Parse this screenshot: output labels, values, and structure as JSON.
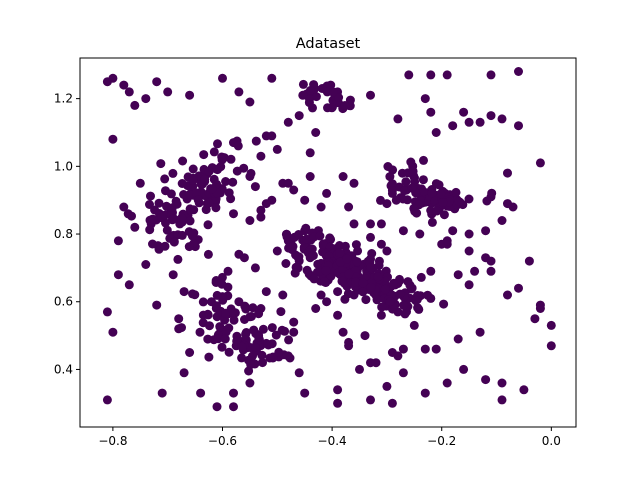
{
  "chart_data": {
    "type": "scatter",
    "title": "Adataset",
    "xlabel": "",
    "ylabel": "",
    "xlim": [
      -0.86,
      0.045
    ],
    "ylim": [
      0.23,
      1.32
    ],
    "x_ticks": [
      -0.8,
      -0.6,
      -0.4,
      -0.2,
      0.0
    ],
    "x_tick_labels": [
      "−0.8",
      "−0.6",
      "−0.4",
      "−0.2",
      "0.0"
    ],
    "y_ticks": [
      0.4,
      0.6,
      0.8,
      1.0,
      1.2
    ],
    "y_tick_labels": [
      "0.4",
      "0.6",
      "0.8",
      "1.0",
      "1.2"
    ],
    "grid": false,
    "marker_color": "#440154",
    "series": [
      {
        "points": [
          [
            -0.81,
            1.25
          ],
          [
            -0.8,
            1.26
          ],
          [
            -0.78,
            1.24
          ],
          [
            -0.77,
            1.22
          ],
          [
            -0.72,
            1.25
          ],
          [
            -0.74,
            1.2
          ],
          [
            -0.7,
            1.22
          ],
          [
            -0.66,
            1.21
          ],
          [
            -0.6,
            1.26
          ],
          [
            -0.57,
            1.22
          ],
          [
            -0.51,
            1.26
          ],
          [
            -0.76,
            1.18
          ],
          [
            -0.8,
            1.08
          ],
          [
            -0.75,
            0.95
          ],
          [
            -0.78,
            0.88
          ],
          [
            -0.79,
            0.78
          ],
          [
            -0.81,
            0.57
          ],
          [
            -0.8,
            0.51
          ],
          [
            -0.81,
            0.31
          ],
          [
            -0.79,
            0.68
          ],
          [
            -0.77,
            0.65
          ],
          [
            -0.74,
            0.71
          ],
          [
            -0.73,
            0.83
          ],
          [
            -0.76,
            0.82
          ],
          [
            -0.72,
            0.59
          ],
          [
            -0.71,
            0.33
          ],
          [
            -0.67,
            0.39
          ],
          [
            -0.64,
            0.33
          ],
          [
            -0.61,
            0.29
          ],
          [
            -0.58,
            0.29
          ],
          [
            -0.55,
            0.36
          ],
          [
            -0.46,
            0.39
          ],
          [
            -0.45,
            0.33
          ],
          [
            -0.39,
            0.3
          ],
          [
            -0.39,
            0.34
          ],
          [
            -0.35,
            0.4
          ],
          [
            -0.33,
            0.31
          ],
          [
            -0.3,
            0.35
          ],
          [
            -0.29,
            0.3
          ],
          [
            -0.27,
            0.39
          ],
          [
            -0.23,
            0.33
          ],
          [
            -0.19,
            0.36
          ],
          [
            -0.16,
            0.4
          ],
          [
            -0.12,
            0.37
          ],
          [
            -0.09,
            0.36
          ],
          [
            -0.05,
            0.34
          ],
          [
            -0.09,
            0.31
          ],
          [
            -0.02,
            0.58
          ],
          [
            -0.03,
            0.55
          ],
          [
            0.0,
            0.53
          ],
          [
            0.0,
            0.47
          ],
          [
            -0.02,
            0.59
          ],
          [
            -0.04,
            0.72
          ],
          [
            -0.06,
            0.64
          ],
          [
            -0.08,
            0.62
          ],
          [
            -0.11,
            0.69
          ],
          [
            -0.14,
            0.69
          ],
          [
            -0.15,
            0.65
          ],
          [
            -0.15,
            0.75
          ],
          [
            -0.12,
            0.81
          ],
          [
            -0.12,
            0.73
          ],
          [
            -0.07,
            0.88
          ],
          [
            -0.08,
            0.89
          ],
          [
            -0.08,
            0.98
          ],
          [
            -0.06,
            1.12
          ],
          [
            -0.09,
            1.14
          ],
          [
            -0.11,
            1.15
          ],
          [
            -0.13,
            1.13
          ],
          [
            -0.15,
            1.13
          ],
          [
            -0.16,
            1.16
          ],
          [
            -0.18,
            1.12
          ],
          [
            -0.21,
            1.1
          ],
          [
            -0.22,
            1.16
          ],
          [
            -0.23,
            1.2
          ],
          [
            -0.28,
            1.14
          ],
          [
            -0.26,
            1.27
          ],
          [
            -0.22,
            1.27
          ],
          [
            -0.19,
            1.27
          ],
          [
            -0.11,
            1.27
          ],
          [
            -0.06,
            1.28
          ],
          [
            -0.02,
            1.01
          ],
          [
            -0.33,
            1.21
          ],
          [
            -0.37,
            1.18
          ],
          [
            -0.39,
            1.22
          ],
          [
            -0.43,
            1.1
          ],
          [
            -0.53,
            1.03
          ],
          [
            -0.55,
            0.97
          ],
          [
            -0.58,
            1.07
          ],
          [
            -0.55,
            1.19
          ],
          [
            -0.52,
            1.09
          ],
          [
            -0.51,
            1.09
          ],
          [
            -0.46,
            1.15
          ],
          [
            -0.48,
            1.13
          ],
          [
            -0.5,
            1.05
          ],
          [
            -0.49,
            0.95
          ],
          [
            -0.51,
            0.9
          ],
          [
            -0.52,
            0.89
          ],
          [
            -0.54,
            0.94
          ],
          [
            -0.53,
            0.87
          ],
          [
            -0.55,
            0.84
          ],
          [
            -0.58,
            0.86
          ],
          [
            -0.62,
            0.6
          ],
          [
            -0.57,
            0.6
          ],
          [
            -0.53,
            0.58
          ],
          [
            -0.54,
            0.7
          ],
          [
            -0.52,
            0.63
          ],
          [
            -0.49,
            0.62
          ],
          [
            -0.47,
            0.54
          ],
          [
            -0.47,
            0.51
          ],
          [
            -0.48,
            0.44
          ],
          [
            -0.43,
            0.58
          ],
          [
            -0.42,
            0.62
          ],
          [
            -0.41,
            0.6
          ],
          [
            -0.39,
            0.56
          ],
          [
            -0.38,
            0.51
          ],
          [
            -0.37,
            0.48
          ],
          [
            -0.37,
            0.47
          ],
          [
            -0.34,
            0.5
          ],
          [
            -0.31,
            0.56
          ],
          [
            -0.28,
            0.57
          ],
          [
            -0.29,
            0.45
          ],
          [
            -0.27,
            0.46
          ],
          [
            -0.25,
            0.53
          ],
          [
            -0.23,
            0.46
          ],
          [
            -0.3,
            0.75
          ],
          [
            -0.31,
            0.77
          ],
          [
            -0.33,
            0.83
          ],
          [
            -0.36,
            0.95
          ],
          [
            -0.36,
            0.83
          ],
          [
            -0.37,
            0.88
          ],
          [
            -0.38,
            0.97
          ],
          [
            -0.41,
            0.92
          ],
          [
            -0.42,
            0.88
          ],
          [
            -0.44,
            0.97
          ],
          [
            -0.45,
            0.9
          ],
          [
            -0.47,
            0.93
          ],
          [
            -0.48,
            0.95
          ],
          [
            -0.44,
            1.04
          ],
          [
            -0.38,
            0.68
          ],
          [
            -0.39,
            0.63
          ],
          [
            -0.36,
            0.62
          ],
          [
            -0.44,
            0.73
          ],
          [
            -0.5,
            0.75
          ],
          [
            -0.48,
            0.78
          ],
          [
            -0.45,
            0.81
          ],
          [
            -0.53,
            0.85
          ],
          [
            -0.59,
            0.69
          ],
          [
            -0.57,
            0.74
          ],
          [
            -0.56,
            0.73
          ],
          [
            -0.67,
            0.63
          ],
          [
            -0.69,
            0.68
          ],
          [
            -0.68,
            0.55
          ],
          [
            -0.68,
            0.52
          ],
          [
            -0.66,
            0.45
          ],
          [
            -0.58,
            0.33
          ],
          [
            -0.33,
            0.42
          ],
          [
            -0.32,
            0.42
          ],
          [
            -0.28,
            0.44
          ],
          [
            -0.21,
            0.46
          ],
          [
            -0.17,
            0.49
          ],
          [
            -0.13,
            0.51
          ],
          [
            -0.22,
            0.61
          ],
          [
            -0.17,
            0.68
          ],
          [
            -0.22,
            0.69
          ],
          [
            -0.19,
            0.77
          ],
          [
            -0.2,
            0.77
          ],
          [
            -0.24,
            0.8
          ],
          [
            -0.19,
            0.78
          ],
          [
            -0.11,
            0.72
          ],
          [
            -0.18,
            0.81
          ],
          [
            -0.15,
            0.8
          ],
          [
            -0.09,
            0.84
          ],
          [
            -0.11,
            0.91
          ],
          [
            -0.3,
            0.89
          ],
          [
            -0.29,
            0.92
          ],
          [
            -0.31,
            0.83
          ],
          [
            -0.33,
            0.79
          ],
          [
            -0.27,
            0.81
          ]
        ],
        "clusters": [
          {
            "cx": -0.64,
            "cy": 0.94,
            "sx": 0.03,
            "sy": 0.035,
            "n": 55
          },
          {
            "cx": -0.69,
            "cy": 0.84,
            "sx": 0.035,
            "sy": 0.055,
            "n": 60
          },
          {
            "cx": -0.6,
            "cy": 1.02,
            "sx": 0.03,
            "sy": 0.035,
            "n": 18
          },
          {
            "cx": -0.59,
            "cy": 0.54,
            "sx": 0.03,
            "sy": 0.04,
            "n": 45
          },
          {
            "cx": -0.53,
            "cy": 0.47,
            "sx": 0.03,
            "sy": 0.035,
            "n": 50
          },
          {
            "cx": -0.61,
            "cy": 0.62,
            "sx": 0.018,
            "sy": 0.03,
            "n": 12
          },
          {
            "cx": -0.44,
            "cy": 0.77,
            "sx": 0.03,
            "sy": 0.025,
            "n": 40
          },
          {
            "cx": -0.39,
            "cy": 0.71,
            "sx": 0.03,
            "sy": 0.03,
            "n": 110
          },
          {
            "cx": -0.33,
            "cy": 0.66,
            "sx": 0.03,
            "sy": 0.03,
            "n": 80
          },
          {
            "cx": -0.27,
            "cy": 0.62,
            "sx": 0.025,
            "sy": 0.03,
            "n": 45
          },
          {
            "cx": -0.21,
            "cy": 0.9,
            "sx": 0.035,
            "sy": 0.02,
            "n": 70
          },
          {
            "cx": -0.26,
            "cy": 0.96,
            "sx": 0.03,
            "sy": 0.03,
            "n": 25
          },
          {
            "cx": -0.42,
            "cy": 1.21,
            "sx": 0.025,
            "sy": 0.02,
            "n": 28
          }
        ]
      }
    ]
  }
}
